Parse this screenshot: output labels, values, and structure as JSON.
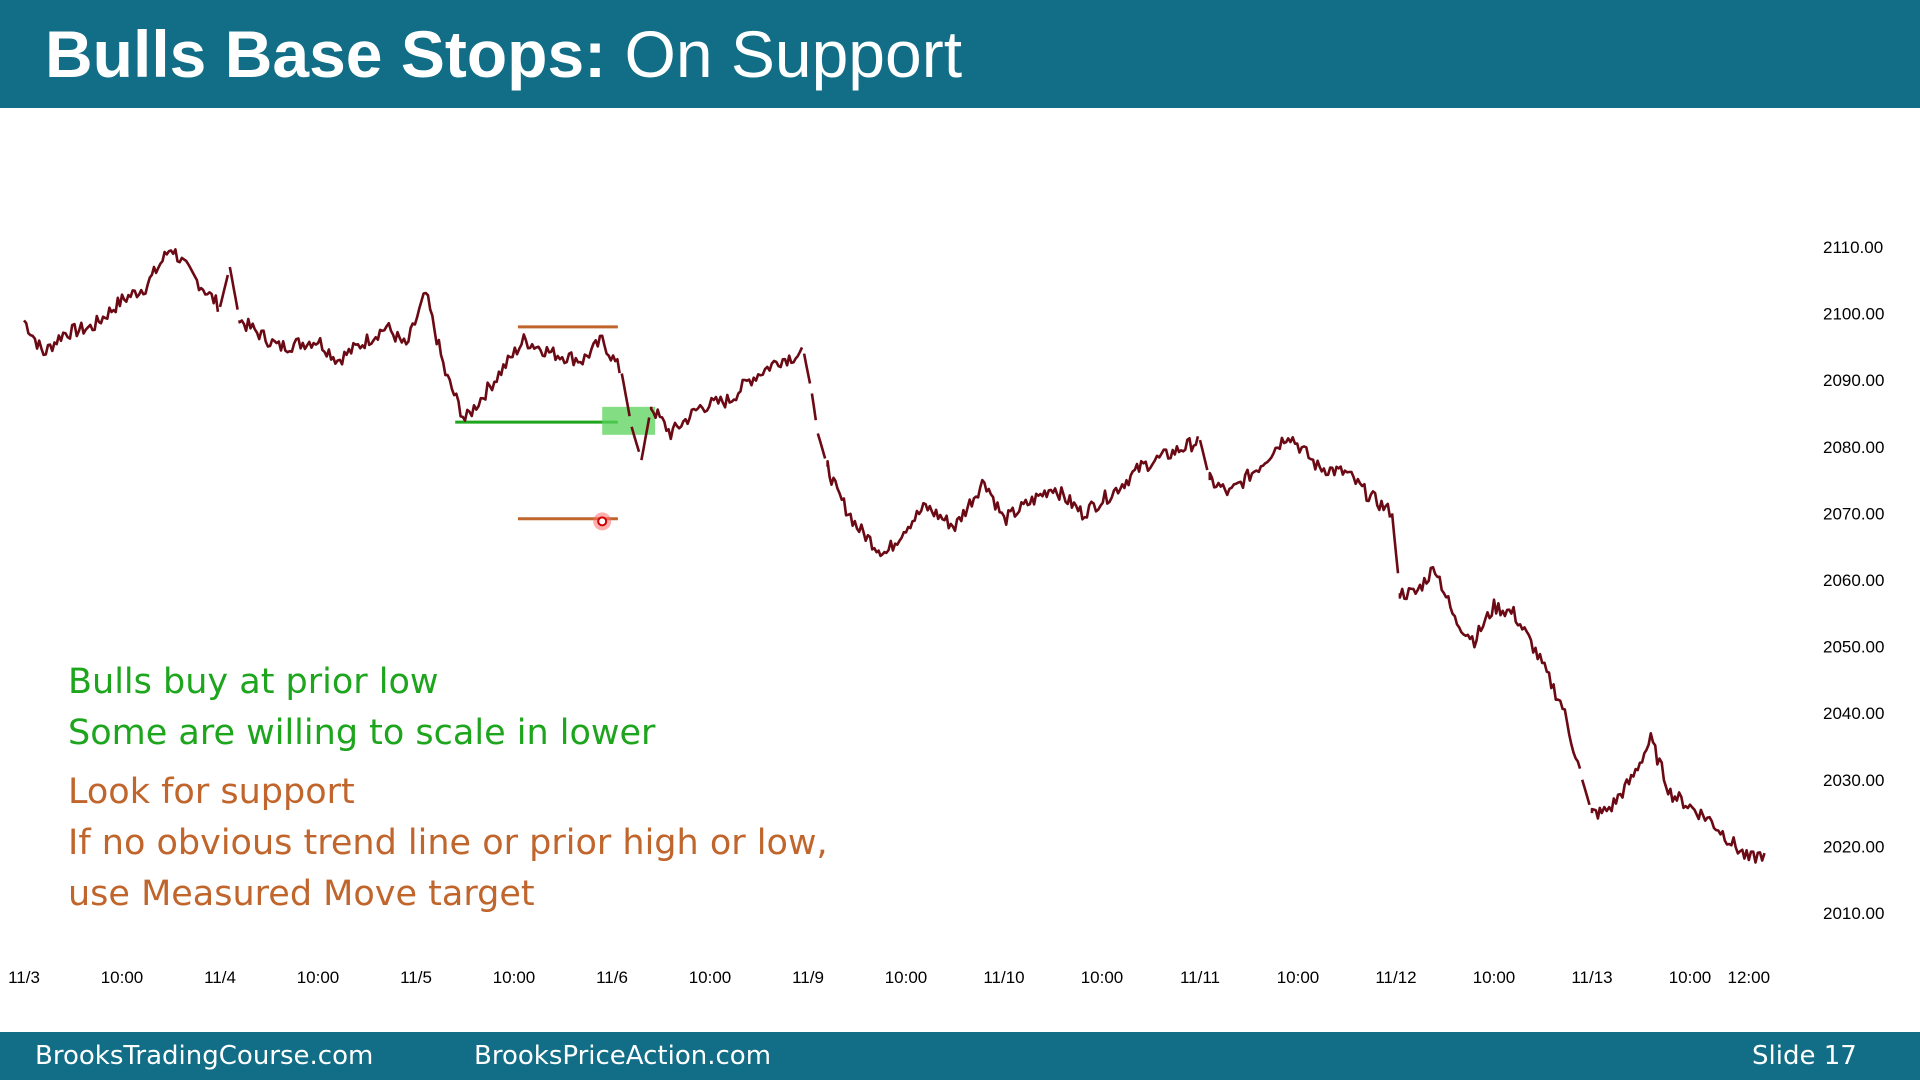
{
  "slide": {
    "title_bold": "Bulls Base Stops:",
    "title_light": "On Support",
    "footer_left": "BrooksTradingCourse.com",
    "footer_mid": "BrooksPriceAction.com",
    "slide_label": "Slide  17"
  },
  "annotations": {
    "green": [
      "Bulls buy at prior low",
      "Some are willing to scale in lower"
    ],
    "orange": [
      "Look for support",
      "If no obvious trend line or prior high or low,",
      "use Measured Move target"
    ]
  },
  "colors": {
    "header": "#126e86",
    "price": "#6b0a14",
    "green": "#1ea51e",
    "orange": "#c0652c",
    "highlight": "#5ad35a"
  },
  "chart_data": {
    "type": "line",
    "ylim": [
      2005,
      2120
    ],
    "yticks": [
      "2110.00",
      "2100.00",
      "2090.00",
      "2080.00",
      "2070.00",
      "2060.00",
      "2050.00",
      "2040.00",
      "2030.00",
      "2020.00",
      "2010.00"
    ],
    "ytick_values": [
      2110,
      2100,
      2090,
      2080,
      2070,
      2060,
      2050,
      2040,
      2030,
      2020,
      2010
    ],
    "xticks": [
      "11/3",
      "10:00",
      "11/4",
      "10:00",
      "11/5",
      "10:00",
      "11/6",
      "10:00",
      "11/9",
      "10:00",
      "11/10",
      "10:00",
      "11/11",
      "10:00",
      "11/12",
      "10:00",
      "11/13",
      "10:00",
      "12:00"
    ],
    "xtick_pos": [
      0,
      0.5,
      1,
      1.5,
      2,
      2.5,
      3,
      3.5,
      4,
      4.5,
      5,
      5.5,
      6,
      6.5,
      7,
      7.5,
      8,
      8.5,
      8.8
    ],
    "series": [
      {
        "x": [
          0,
          0.1,
          0.2,
          0.35,
          0.5,
          0.62,
          0.75,
          0.85,
          1.0,
          1.05,
          1.1,
          1.3,
          1.5,
          1.6,
          1.75,
          1.85,
          1.95,
          2.05,
          2.15,
          2.25,
          2.4,
          2.55,
          2.7,
          2.85,
          2.95,
          3.05,
          3.1,
          3.15,
          3.2,
          3.3,
          3.45,
          3.6,
          3.7,
          3.85,
          3.98,
          4.02,
          4.05,
          4.1,
          4.15,
          4.25,
          4.35,
          4.4,
          4.5,
          4.6,
          4.75,
          4.9,
          5.0,
          5.1,
          5.25,
          5.4,
          5.55,
          5.7,
          5.85,
          6.0,
          6.05,
          6.15,
          6.3,
          6.45,
          6.6,
          6.75,
          6.85,
          6.98,
          7.02,
          7.1,
          7.2,
          7.3,
          7.4,
          7.5,
          7.6,
          7.7,
          7.85,
          7.95,
          8.0,
          8.05,
          8.1,
          8.2,
          8.3,
          8.4,
          8.5,
          8.6,
          8.7,
          8.8,
          8.88
        ],
        "values": [
          2099,
          2094,
          2097,
          2098,
          2102,
          2104,
          2110,
          2106,
          2101,
          2107,
          2099,
          2095,
          2096,
          2093,
          2096,
          2098,
          2095,
          2103,
          2091,
          2084,
          2090,
          2096,
          2094,
          2093,
          2096,
          2091,
          2083,
          2078,
          2086,
          2082,
          2086,
          2087,
          2090,
          2093,
          2094,
          2088,
          2082,
          2077,
          2073,
          2068,
          2065,
          2064,
          2068,
          2071,
          2068,
          2075,
          2069,
          2071,
          2074,
          2070,
          2073,
          2077,
          2079,
          2081,
          2075,
          2073,
          2077,
          2082,
          2077,
          2076,
          2073,
          2070,
          2058,
          2058,
          2062,
          2054,
          2051,
          2056,
          2055,
          2050,
          2041,
          2030,
          2025,
          2025,
          2026,
          2030,
          2036,
          2028,
          2026,
          2024,
          2021,
          2018,
          2019
        ]
      }
    ],
    "annotations_lines": [
      {
        "kind": "hline",
        "color": "orange",
        "x0": 2.52,
        "x1": 3.03,
        "y": 2098
      },
      {
        "kind": "hline",
        "color": "green",
        "x0": 2.2,
        "x1": 3.03,
        "y": 2083.7
      },
      {
        "kind": "hline",
        "color": "orange",
        "x0": 2.52,
        "x1": 3.03,
        "y": 2069.2
      },
      {
        "kind": "zone",
        "color": "highlight",
        "x0": 2.95,
        "x1": 3.22,
        "y0": 2081.8,
        "y1": 2086.0
      },
      {
        "kind": "marker",
        "color": "red",
        "x": 2.95,
        "y": 2068.8
      }
    ]
  }
}
